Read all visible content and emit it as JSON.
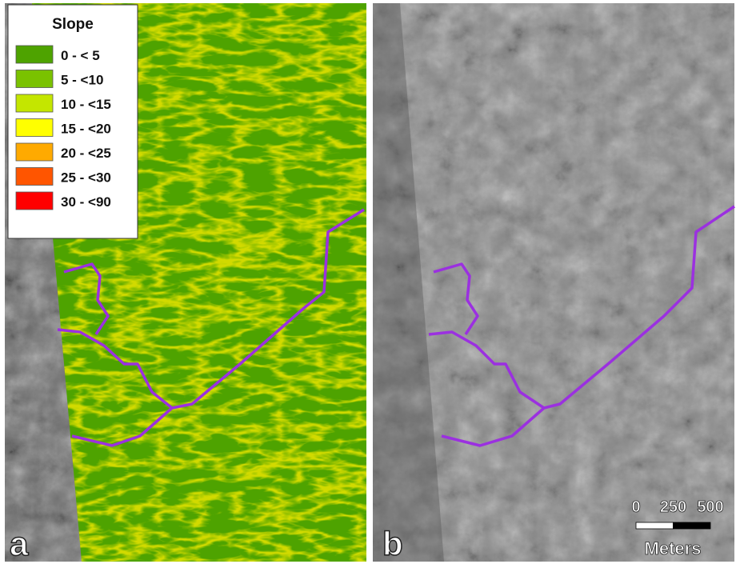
{
  "legend": {
    "title": "Slope",
    "items": [
      {
        "label": "0 - < 5",
        "color": "#4ea300"
      },
      {
        "label": "5 - <10",
        "color": "#7ac200"
      },
      {
        "label": "10 - <15",
        "color": "#c4e600"
      },
      {
        "label": "15 - <20",
        "color": "#ffff00"
      },
      {
        "label": "20 - <25",
        "color": "#ffaa00"
      },
      {
        "label": "25 - <30",
        "color": "#ff5500"
      },
      {
        "label": "30 - <90",
        "color": "#ff0000"
      }
    ]
  },
  "panels": [
    {
      "label": "a"
    },
    {
      "label": "b"
    }
  ],
  "scale_bar": {
    "ticks": [
      0,
      250,
      500
    ],
    "unit": "Meters"
  }
}
